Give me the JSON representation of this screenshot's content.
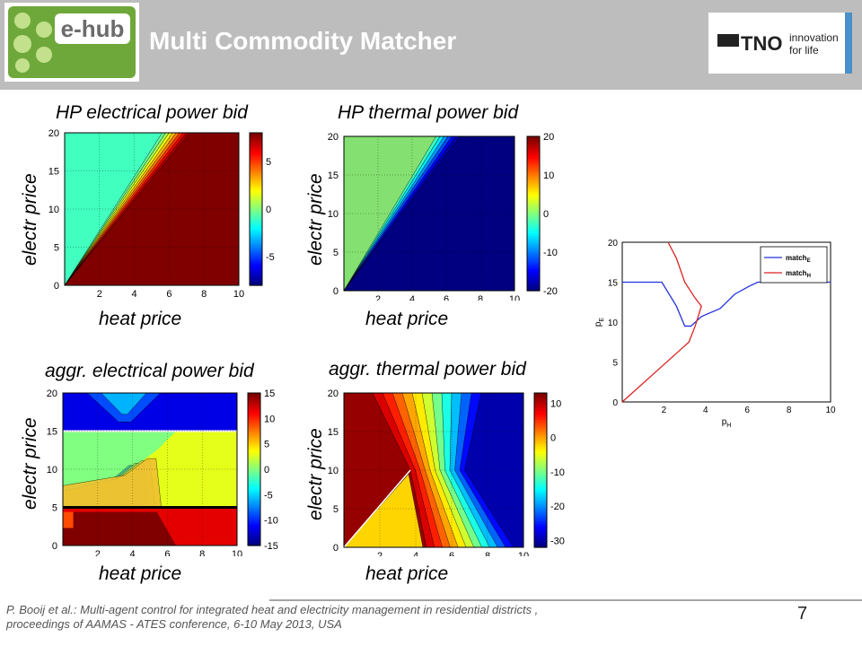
{
  "header": {
    "title": "Multi Commodity Matcher",
    "logo_left_text": "e-hub",
    "logo_right_brand": "TNO",
    "logo_right_tagline_1": "innovation",
    "logo_right_tagline_2": "for life"
  },
  "colors": {
    "header_bg": "#bdbdbd",
    "title": "#ffffff",
    "green_field": "#84e070",
    "dark_red": "#7f0000",
    "dark_blue": "#0a1f8f"
  },
  "chart_data": [
    {
      "type": "heatmap",
      "title": "HP electrical power bid",
      "xlabel": "heat price",
      "ylabel": "electr price",
      "xlim": [
        0,
        10
      ],
      "ylim": [
        0,
        20
      ],
      "xticks": [
        "2",
        "4",
        "6",
        "8",
        "10"
      ],
      "yticks": [
        "0",
        "5",
        "10",
        "15",
        "20"
      ],
      "colorbar_ticks": [
        "5",
        "0",
        "-5"
      ],
      "colorbar_range": [
        -8,
        8
      ],
      "regions": [
        {
          "label": "high (above diagonal)",
          "value": -1
        },
        {
          "label": "transition band",
          "value": 0
        },
        {
          "label": "low (below diagonal)",
          "value": 8
        }
      ]
    },
    {
      "type": "heatmap",
      "title": "HP thermal power bid",
      "xlabel": "heat price",
      "ylabel": "electr price",
      "xlim": [
        0,
        10
      ],
      "ylim": [
        0,
        20
      ],
      "xticks": [
        "2",
        "4",
        "6",
        "8",
        "10"
      ],
      "yticks": [
        "0",
        "5",
        "10",
        "15",
        "20"
      ],
      "colorbar_ticks": [
        "20",
        "10",
        "0",
        "-10",
        "-20"
      ],
      "colorbar_range": [
        -20,
        20
      ],
      "regions": [
        {
          "label": "above diagonal",
          "value": -1
        },
        {
          "label": "below diagonal",
          "value": -20
        }
      ]
    },
    {
      "type": "heatmap",
      "title": "aggr. electrical power bid",
      "xlabel": "heat price",
      "ylabel": "electr price",
      "xlim": [
        0,
        10
      ],
      "ylim": [
        0,
        20
      ],
      "xticks": [
        "2",
        "4",
        "6",
        "8",
        "10"
      ],
      "yticks": [
        "0",
        "5",
        "10",
        "15",
        "20"
      ],
      "colorbar_ticks": [
        "15",
        "10",
        "5",
        "0",
        "-5",
        "-10",
        "-15"
      ],
      "colorbar_range": [
        -15,
        15
      ],
      "regions": [
        {
          "label": "top band",
          "value": -12
        },
        {
          "label": "middle left",
          "value": 0
        },
        {
          "label": "middle right",
          "value": 3
        },
        {
          "label": "bottom left",
          "value": 10
        },
        {
          "label": "bottom right",
          "value": 12
        },
        {
          "label": "bottom dark",
          "value": 15
        }
      ]
    },
    {
      "type": "heatmap",
      "title": "aggr. thermal power bid",
      "xlabel": "heat price",
      "ylabel": "electr price",
      "xlim": [
        0,
        10
      ],
      "ylim": [
        0,
        20
      ],
      "xticks": [
        "2",
        "4",
        "6",
        "8",
        "10"
      ],
      "yticks": [
        "0",
        "5",
        "10",
        "15",
        "20"
      ],
      "colorbar_ticks": [
        "10",
        "0",
        "-10",
        "-20",
        "-30"
      ],
      "colorbar_range": [
        -32,
        13
      ],
      "regions": [
        {
          "label": "left",
          "value": 12
        },
        {
          "label": "bottom center",
          "value": -2
        },
        {
          "label": "right",
          "value": -30
        }
      ]
    },
    {
      "type": "line",
      "xlabel": "p_H",
      "ylabel": "p_E",
      "xlim": [
        0,
        10
      ],
      "ylim": [
        0,
        20
      ],
      "xticks": [
        "2",
        "4",
        "6",
        "8",
        "10"
      ],
      "yticks": [
        "0",
        "5",
        "10",
        "15",
        "20"
      ],
      "legend": "top-right",
      "series": [
        {
          "name": "match_E",
          "color": "#2233dd",
          "points": [
            [
              0,
              15
            ],
            [
              1.9,
              15
            ],
            [
              2.6,
              12
            ],
            [
              3.0,
              9.5
            ],
            [
              3.3,
              9.5
            ],
            [
              3.8,
              10.7
            ],
            [
              4.7,
              11.7
            ],
            [
              5.4,
              13.5
            ],
            [
              6.1,
              14.5
            ],
            [
              6.5,
              15
            ],
            [
              10,
              15
            ]
          ]
        },
        {
          "name": "match_H",
          "color": "#dd2222",
          "points": [
            [
              0,
              0
            ],
            [
              3.2,
              7.5
            ],
            [
              3.5,
              9.5
            ],
            [
              3.8,
              12
            ],
            [
              3.5,
              13
            ],
            [
              3,
              15
            ],
            [
              2.6,
              18
            ],
            [
              2.2,
              20
            ]
          ]
        }
      ]
    }
  ],
  "footer": {
    "citation_line1": "P. Booij et al.: Multi-agent control for integrated heat and electricity management in residential districts ,",
    "citation_line2": "proceedings of AAMAS - ATES conference, 6-10 May 2013, USA",
    "page_number": "7"
  }
}
